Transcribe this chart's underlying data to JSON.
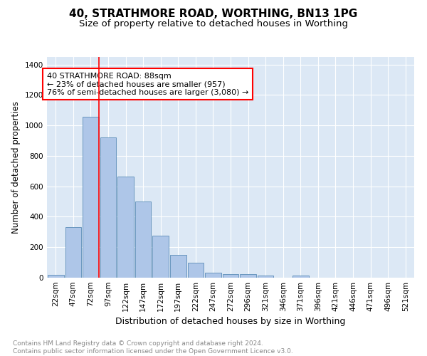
{
  "title": "40, STRATHMORE ROAD, WORTHING, BN13 1PG",
  "subtitle": "Size of property relative to detached houses in Worthing",
  "xlabel": "Distribution of detached houses by size in Worthing",
  "ylabel": "Number of detached properties",
  "bar_labels": [
    "22sqm",
    "47sqm",
    "72sqm",
    "97sqm",
    "122sqm",
    "147sqm",
    "172sqm",
    "197sqm",
    "222sqm",
    "247sqm",
    "272sqm",
    "296sqm",
    "321sqm",
    "346sqm",
    "371sqm",
    "396sqm",
    "421sqm",
    "446sqm",
    "471sqm",
    "496sqm",
    "521sqm"
  ],
  "bar_values": [
    20,
    330,
    1055,
    920,
    665,
    500,
    278,
    150,
    100,
    35,
    22,
    22,
    15,
    0,
    12,
    0,
    0,
    0,
    0,
    0,
    0
  ],
  "bar_color": "#aec6e8",
  "bar_edge_color": "#5b8db8",
  "background_color": "#dce8f5",
  "vline_color": "red",
  "annotation_text": "40 STRATHMORE ROAD: 88sqm\n← 23% of detached houses are smaller (957)\n76% of semi-detached houses are larger (3,080) →",
  "annotation_box_color": "white",
  "annotation_box_edge_color": "red",
  "ylim": [
    0,
    1450
  ],
  "yticks": [
    0,
    200,
    400,
    600,
    800,
    1000,
    1200,
    1400
  ],
  "footer_text": "Contains HM Land Registry data © Crown copyright and database right 2024.\nContains public sector information licensed under the Open Government Licence v3.0.",
  "title_fontsize": 11,
  "subtitle_fontsize": 9.5,
  "xlabel_fontsize": 9,
  "ylabel_fontsize": 8.5,
  "tick_fontsize": 7.5,
  "annotation_fontsize": 8,
  "footer_fontsize": 6.5
}
